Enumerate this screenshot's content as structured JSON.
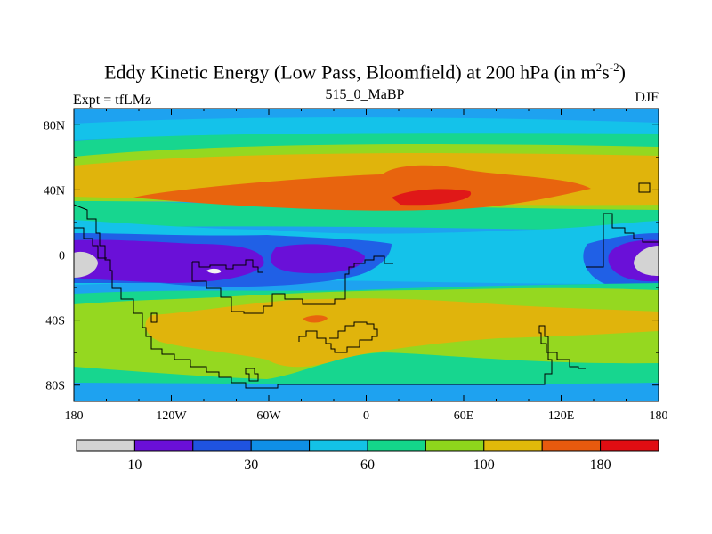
{
  "chart_data": {
    "type": "contour-map",
    "title_prefix": "Eddy Kinetic Energy (Low Pass, Bloomfield) at 200 hPa (in m",
    "title_sup1": "2",
    "title_mid": "s",
    "title_sup2": "-2",
    "title_suffix": ")",
    "left_label": "Expt = tfLMz",
    "center_label": "515_0_MaBP",
    "right_label": "DJF",
    "x_ticks": [
      "180",
      "120W",
      "60W",
      "0",
      "60E",
      "120E",
      "180"
    ],
    "x_tick_values": [
      -180,
      -120,
      -60,
      0,
      60,
      120,
      180
    ],
    "y_ticks": [
      "80N",
      "40N",
      "0",
      "40S",
      "80S"
    ],
    "y_tick_values": [
      80,
      40,
      0,
      -40,
      -80
    ],
    "xlim": [
      -180,
      180
    ],
    "ylim": [
      -90,
      90
    ],
    "colorbar": {
      "labels": [
        "10",
        "30",
        "60",
        "100",
        "180"
      ],
      "colors": [
        "#d3d3d3",
        "#6a0fd8",
        "#1f53e0",
        "#0f8fe6",
        "#13c2e6",
        "#14d68a",
        "#8ed61c",
        "#e1b90a",
        "#e85a0e",
        "#e00d12"
      ]
    },
    "colors": {
      "bg": "#1ea2f0",
      "lightblue": "#14c2ea",
      "green": "#17d68f",
      "yellowgreen": "#95d820",
      "gold": "#e0b40c",
      "orange": "#e8640e",
      "red": "#e01818",
      "blue": "#2060e6",
      "indigo": "#4a2ee6",
      "purple": "#6a10d8",
      "white": "#f2f2f2",
      "gray": "#d3d3d3",
      "coast": "#000000"
    }
  }
}
